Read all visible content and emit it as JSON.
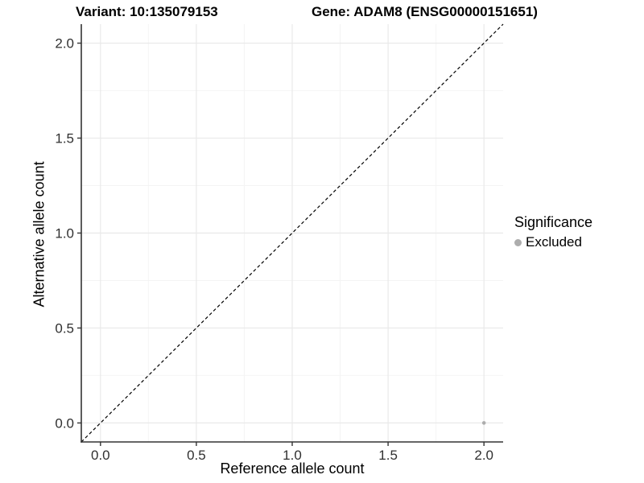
{
  "chart_data": {
    "type": "scatter",
    "title_left": "Variant: 10:135079153",
    "title_right": "Gene: ADAM8 (ENSG00000151651)",
    "xlabel": "Reference allele count",
    "ylabel": "Alternative allele count",
    "xlim": [
      -0.1,
      2.1
    ],
    "ylim": [
      -0.1,
      2.1
    ],
    "x_ticks": [
      0.0,
      0.5,
      1.0,
      1.5,
      2.0
    ],
    "y_ticks": [
      0.0,
      0.5,
      1.0,
      1.5,
      2.0
    ],
    "x_tick_labels": [
      "0.0",
      "0.5",
      "1.0",
      "1.5",
      "2.0"
    ],
    "y_tick_labels": [
      "0.0",
      "0.5",
      "1.0",
      "1.5",
      "2.0"
    ],
    "x_minor_ticks": [
      0.25,
      0.75,
      1.25,
      1.75
    ],
    "y_minor_ticks": [
      0.25,
      0.75,
      1.25,
      1.75
    ],
    "grid": true,
    "reference_line": {
      "type": "identity",
      "slope": 1,
      "intercept": 0,
      "style": "dashed",
      "color": "#000000"
    },
    "series": [
      {
        "name": "Excluded",
        "color": "#adadad",
        "points": [
          {
            "x": 2.0,
            "y": 0.0
          }
        ]
      }
    ],
    "legend": {
      "title": "Significance",
      "position": "right",
      "items": [
        {
          "label": "Excluded",
          "color": "#adadad",
          "marker": "circle"
        }
      ]
    }
  },
  "style_colors": {
    "axis_line": "#333333",
    "tick_mark": "#333333",
    "tick_label": "#303030",
    "grid_major": "#e9e9e9",
    "grid_minor": "#f4f4f4",
    "background": "#ffffff"
  }
}
